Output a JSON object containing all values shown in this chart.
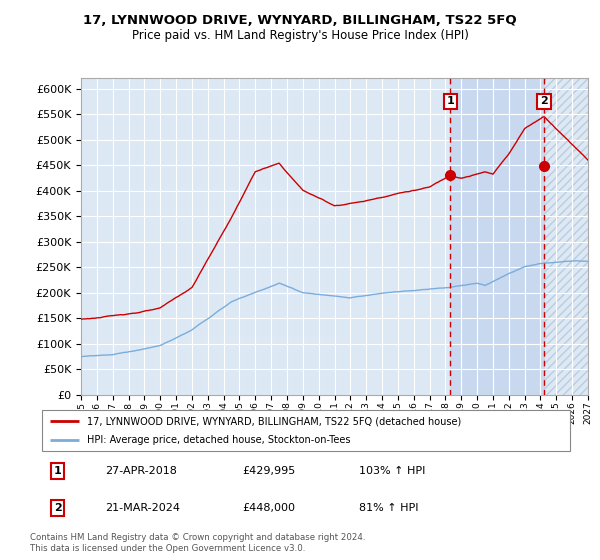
{
  "title": "17, LYNNWOOD DRIVE, WYNYARD, BILLINGHAM, TS22 5FQ",
  "subtitle": "Price paid vs. HM Land Registry's House Price Index (HPI)",
  "legend_label_red": "17, LYNNWOOD DRIVE, WYNYARD, BILLINGHAM, TS22 5FQ (detached house)",
  "legend_label_blue": "HPI: Average price, detached house, Stockton-on-Tees",
  "annotation1_date": "27-APR-2018",
  "annotation1_price": "£429,995",
  "annotation1_hpi": "103% ↑ HPI",
  "annotation2_date": "21-MAR-2024",
  "annotation2_price": "£448,000",
  "annotation2_hpi": "81% ↑ HPI",
  "copyright": "Contains HM Land Registry data © Crown copyright and database right 2024.\nThis data is licensed under the Open Government Licence v3.0.",
  "red_color": "#cc0000",
  "blue_color": "#7aaddb",
  "background_color": "#ffffff",
  "plot_bg_color": "#dde8f5",
  "highlight_color": "#c8d8ef",
  "grid_color": "#ffffff",
  "ylim": [
    0,
    620000
  ],
  "yticks": [
    0,
    50000,
    100000,
    150000,
    200000,
    250000,
    300000,
    350000,
    400000,
    450000,
    500000,
    550000,
    600000
  ],
  "sale1_year": 2018.32,
  "sale1_price": 429995,
  "sale2_year": 2024.22,
  "sale2_price": 448000,
  "xmin": 1995,
  "xmax": 2027
}
